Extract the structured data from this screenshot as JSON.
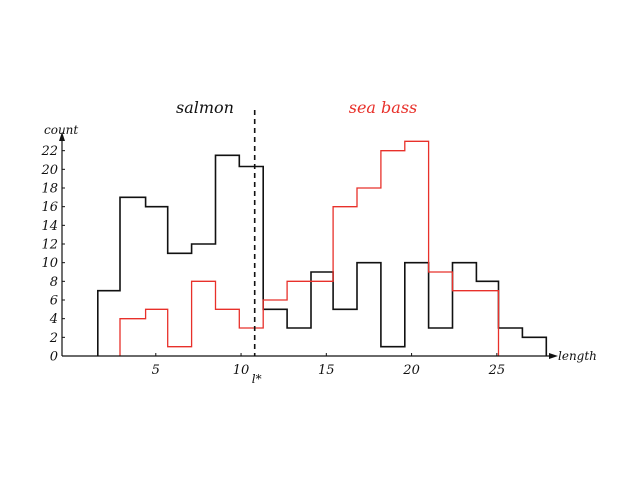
{
  "chart_data": {
    "type": "histogram",
    "title": "",
    "xlabel": "length",
    "ylabel": "count",
    "xlim": [
      -0.5,
      28
    ],
    "ylim": [
      0,
      22.5
    ],
    "xticks": [
      5,
      10,
      15,
      20,
      25
    ],
    "yticks": [
      0,
      2,
      4,
      6,
      8,
      10,
      12,
      14,
      16,
      18,
      20,
      22
    ],
    "threshold": {
      "x": 10.8,
      "label": "l*",
      "style": "dashed"
    },
    "class_labels": [
      {
        "name": "salmon",
        "color": "#111111"
      },
      {
        "name": "sea bass",
        "color": "#e8302a"
      }
    ],
    "series": [
      {
        "name": "salmon",
        "color": "#111111",
        "bins": [
          {
            "x0": 1.6,
            "x1": 2.9,
            "count": 7
          },
          {
            "x0": 2.9,
            "x1": 4.4,
            "count": 17
          },
          {
            "x0": 4.4,
            "x1": 5.7,
            "count": 16
          },
          {
            "x0": 5.7,
            "x1": 7.1,
            "count": 11
          },
          {
            "x0": 7.1,
            "x1": 8.5,
            "count": 12
          },
          {
            "x0": 8.5,
            "x1": 9.9,
            "count": 21.5
          },
          {
            "x0": 9.9,
            "x1": 11.3,
            "count": 20.3
          },
          {
            "x0": 11.3,
            "x1": 12.7,
            "count": 5
          },
          {
            "x0": 12.7,
            "x1": 14.1,
            "count": 3
          },
          {
            "x0": 14.1,
            "x1": 15.4,
            "count": 9
          },
          {
            "x0": 15.4,
            "x1": 16.8,
            "count": 5
          },
          {
            "x0": 16.8,
            "x1": 18.2,
            "count": 10
          },
          {
            "x0": 18.2,
            "x1": 19.6,
            "count": 1
          },
          {
            "x0": 19.6,
            "x1": 21.0,
            "count": 10
          },
          {
            "x0": 21.0,
            "x1": 22.4,
            "count": 3
          },
          {
            "x0": 22.4,
            "x1": 23.8,
            "count": 10
          },
          {
            "x0": 23.8,
            "x1": 25.1,
            "count": 8
          },
          {
            "x0": 25.1,
            "x1": 26.5,
            "count": 3
          },
          {
            "x0": 26.5,
            "x1": 27.9,
            "count": 2
          }
        ]
      },
      {
        "name": "sea bass",
        "color": "#e8302a",
        "bins": [
          {
            "x0": 2.9,
            "x1": 4.4,
            "count": 4
          },
          {
            "x0": 4.4,
            "x1": 5.7,
            "count": 5
          },
          {
            "x0": 5.7,
            "x1": 7.1,
            "count": 1
          },
          {
            "x0": 7.1,
            "x1": 8.5,
            "count": 8
          },
          {
            "x0": 8.5,
            "x1": 9.9,
            "count": 5
          },
          {
            "x0": 9.9,
            "x1": 11.3,
            "count": 3
          },
          {
            "x0": 11.3,
            "x1": 12.7,
            "count": 6
          },
          {
            "x0": 12.7,
            "x1": 14.1,
            "count": 8
          },
          {
            "x0": 14.1,
            "x1": 15.4,
            "count": 8
          },
          {
            "x0": 15.4,
            "x1": 16.8,
            "count": 16
          },
          {
            "x0": 16.8,
            "x1": 18.2,
            "count": 18
          },
          {
            "x0": 18.2,
            "x1": 19.6,
            "count": 22
          },
          {
            "x0": 19.6,
            "x1": 21.0,
            "count": 23
          },
          {
            "x0": 21.0,
            "x1": 22.4,
            "count": 9
          },
          {
            "x0": 22.4,
            "x1": 23.8,
            "count": 7
          },
          {
            "x0": 23.8,
            "x1": 25.1,
            "count": 7
          }
        ]
      }
    ]
  }
}
